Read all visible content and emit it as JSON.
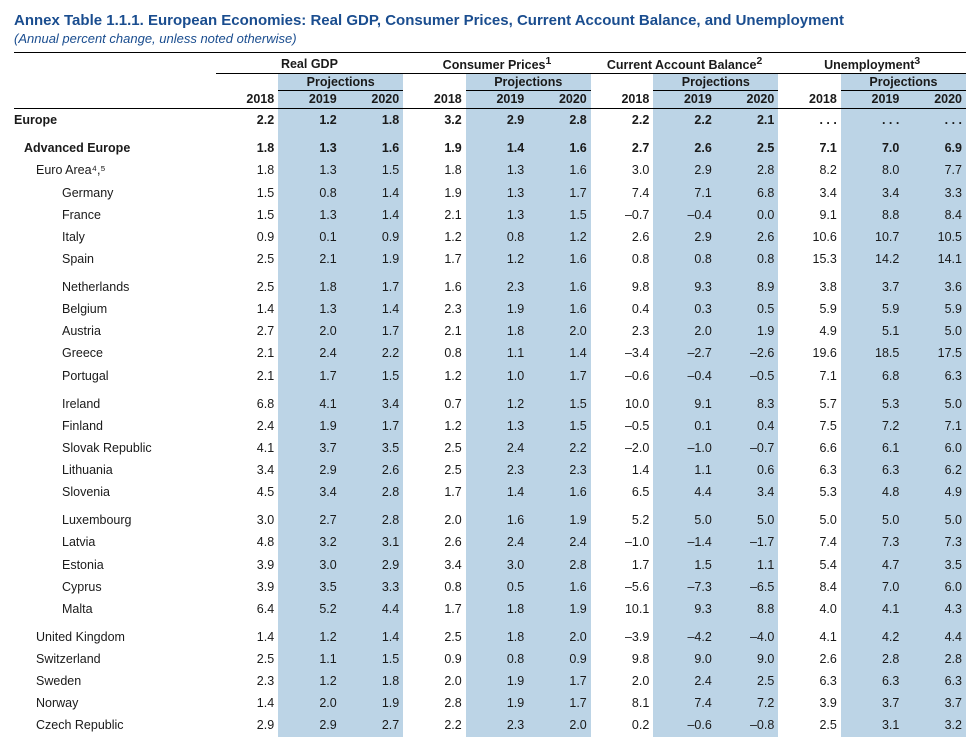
{
  "title": "Annex Table 1.1.1. European Economies: Real GDP, Consumer Prices, Current Account Balance, and Unemployment",
  "subtitle": "(Annual percent change, unless noted otherwise)",
  "groups": [
    {
      "label": "Real GDP",
      "sup": ""
    },
    {
      "label": "Consumer Prices",
      "sup": "1"
    },
    {
      "label": "Current Account Balance",
      "sup": "2"
    },
    {
      "label": "Unemployment",
      "sup": "3"
    }
  ],
  "proj_label": "Projections",
  "years": [
    "2018",
    "2019",
    "2020"
  ],
  "colors": {
    "heading": "#1a4d8f",
    "shade": "#bcd4e6",
    "rule": "#000000"
  },
  "font": {
    "family": "Arial",
    "title_pt": 15,
    "subtitle_pt": 13,
    "body_pt": 12.5
  },
  "rows": [
    {
      "label": "Europe",
      "indent": 0,
      "bold": true,
      "v": [
        "2.2",
        "1.2",
        "1.8",
        "3.2",
        "2.9",
        "2.8",
        "2.2",
        "2.2",
        "2.1",
        ". . .",
        ". . .",
        ". . ."
      ]
    },
    {
      "label": "Advanced Europe",
      "indent": 1,
      "bold": true,
      "gap": true,
      "v": [
        "1.8",
        "1.3",
        "1.6",
        "1.9",
        "1.4",
        "1.6",
        "2.7",
        "2.6",
        "2.5",
        "7.1",
        "7.0",
        "6.9"
      ]
    },
    {
      "label": "Euro Area⁴,⁵",
      "indent": 2,
      "v": [
        "1.8",
        "1.3",
        "1.5",
        "1.8",
        "1.3",
        "1.6",
        "3.0",
        "2.9",
        "2.8",
        "8.2",
        "8.0",
        "7.7"
      ]
    },
    {
      "label": "Germany",
      "indent": 3,
      "v": [
        "1.5",
        "0.8",
        "1.4",
        "1.9",
        "1.3",
        "1.7",
        "7.4",
        "7.1",
        "6.8",
        "3.4",
        "3.4",
        "3.3"
      ]
    },
    {
      "label": "France",
      "indent": 3,
      "v": [
        "1.5",
        "1.3",
        "1.4",
        "2.1",
        "1.3",
        "1.5",
        "–0.7",
        "–0.4",
        "0.0",
        "9.1",
        "8.8",
        "8.4"
      ]
    },
    {
      "label": "Italy",
      "indent": 3,
      "v": [
        "0.9",
        "0.1",
        "0.9",
        "1.2",
        "0.8",
        "1.2",
        "2.6",
        "2.9",
        "2.6",
        "10.6",
        "10.7",
        "10.5"
      ]
    },
    {
      "label": "Spain",
      "indent": 3,
      "v": [
        "2.5",
        "2.1",
        "1.9",
        "1.7",
        "1.2",
        "1.6",
        "0.8",
        "0.8",
        "0.8",
        "15.3",
        "14.2",
        "14.1"
      ]
    },
    {
      "label": "Netherlands",
      "indent": 3,
      "gap": true,
      "v": [
        "2.5",
        "1.8",
        "1.7",
        "1.6",
        "2.3",
        "1.6",
        "9.8",
        "9.3",
        "8.9",
        "3.8",
        "3.7",
        "3.6"
      ]
    },
    {
      "label": "Belgium",
      "indent": 3,
      "v": [
        "1.4",
        "1.3",
        "1.4",
        "2.3",
        "1.9",
        "1.6",
        "0.4",
        "0.3",
        "0.5",
        "5.9",
        "5.9",
        "5.9"
      ]
    },
    {
      "label": "Austria",
      "indent": 3,
      "v": [
        "2.7",
        "2.0",
        "1.7",
        "2.1",
        "1.8",
        "2.0",
        "2.3",
        "2.0",
        "1.9",
        "4.9",
        "5.1",
        "5.0"
      ]
    },
    {
      "label": "Greece",
      "indent": 3,
      "v": [
        "2.1",
        "2.4",
        "2.2",
        "0.8",
        "1.1",
        "1.4",
        "–3.4",
        "–2.7",
        "–2.6",
        "19.6",
        "18.5",
        "17.5"
      ]
    },
    {
      "label": "Portugal",
      "indent": 3,
      "v": [
        "2.1",
        "1.7",
        "1.5",
        "1.2",
        "1.0",
        "1.7",
        "–0.6",
        "–0.4",
        "–0.5",
        "7.1",
        "6.8",
        "6.3"
      ]
    },
    {
      "label": "Ireland",
      "indent": 3,
      "gap": true,
      "v": [
        "6.8",
        "4.1",
        "3.4",
        "0.7",
        "1.2",
        "1.5",
        "10.0",
        "9.1",
        "8.3",
        "5.7",
        "5.3",
        "5.0"
      ]
    },
    {
      "label": "Finland",
      "indent": 3,
      "v": [
        "2.4",
        "1.9",
        "1.7",
        "1.2",
        "1.3",
        "1.5",
        "–0.5",
        "0.1",
        "0.4",
        "7.5",
        "7.2",
        "7.1"
      ]
    },
    {
      "label": "Slovak Republic",
      "indent": 3,
      "v": [
        "4.1",
        "3.7",
        "3.5",
        "2.5",
        "2.4",
        "2.2",
        "–2.0",
        "–1.0",
        "–0.7",
        "6.6",
        "6.1",
        "6.0"
      ]
    },
    {
      "label": "Lithuania",
      "indent": 3,
      "v": [
        "3.4",
        "2.9",
        "2.6",
        "2.5",
        "2.3",
        "2.3",
        "1.4",
        "1.1",
        "0.6",
        "6.3",
        "6.3",
        "6.2"
      ]
    },
    {
      "label": "Slovenia",
      "indent": 3,
      "v": [
        "4.5",
        "3.4",
        "2.8",
        "1.7",
        "1.4",
        "1.6",
        "6.5",
        "4.4",
        "3.4",
        "5.3",
        "4.8",
        "4.9"
      ]
    },
    {
      "label": "Luxembourg",
      "indent": 3,
      "gap": true,
      "v": [
        "3.0",
        "2.7",
        "2.8",
        "2.0",
        "1.6",
        "1.9",
        "5.2",
        "5.0",
        "5.0",
        "5.0",
        "5.0",
        "5.0"
      ]
    },
    {
      "label": "Latvia",
      "indent": 3,
      "v": [
        "4.8",
        "3.2",
        "3.1",
        "2.6",
        "2.4",
        "2.4",
        "–1.0",
        "–1.4",
        "–1.7",
        "7.4",
        "7.3",
        "7.3"
      ]
    },
    {
      "label": "Estonia",
      "indent": 3,
      "v": [
        "3.9",
        "3.0",
        "2.9",
        "3.4",
        "3.0",
        "2.8",
        "1.7",
        "1.5",
        "1.1",
        "5.4",
        "4.7",
        "3.5"
      ]
    },
    {
      "label": "Cyprus",
      "indent": 3,
      "v": [
        "3.9",
        "3.5",
        "3.3",
        "0.8",
        "0.5",
        "1.6",
        "–5.6",
        "–7.3",
        "–6.5",
        "8.4",
        "7.0",
        "6.0"
      ]
    },
    {
      "label": "Malta",
      "indent": 3,
      "v": [
        "6.4",
        "5.2",
        "4.4",
        "1.7",
        "1.8",
        "1.9",
        "10.1",
        "9.3",
        "8.8",
        "4.0",
        "4.1",
        "4.3"
      ]
    },
    {
      "label": "United Kingdom",
      "indent": 2,
      "gap": true,
      "v": [
        "1.4",
        "1.2",
        "1.4",
        "2.5",
        "1.8",
        "2.0",
        "–3.9",
        "–4.2",
        "–4.0",
        "4.1",
        "4.2",
        "4.4"
      ]
    },
    {
      "label": "Switzerland",
      "indent": 2,
      "v": [
        "2.5",
        "1.1",
        "1.5",
        "0.9",
        "0.8",
        "0.9",
        "9.8",
        "9.0",
        "9.0",
        "2.6",
        "2.8",
        "2.8"
      ]
    },
    {
      "label": "Sweden",
      "indent": 2,
      "v": [
        "2.3",
        "1.2",
        "1.8",
        "2.0",
        "1.9",
        "1.7",
        "2.0",
        "2.4",
        "2.5",
        "6.3",
        "6.3",
        "6.3"
      ]
    },
    {
      "label": "Norway",
      "indent": 2,
      "v": [
        "1.4",
        "2.0",
        "1.9",
        "2.8",
        "1.9",
        "1.7",
        "8.1",
        "7.4",
        "7.2",
        "3.9",
        "3.7",
        "3.7"
      ]
    },
    {
      "label": "Czech Republic",
      "indent": 2,
      "v": [
        "2.9",
        "2.9",
        "2.7",
        "2.2",
        "2.3",
        "2.0",
        "0.2",
        "–0.6",
        "–0.8",
        "2.5",
        "3.1",
        "3.2"
      ]
    }
  ]
}
